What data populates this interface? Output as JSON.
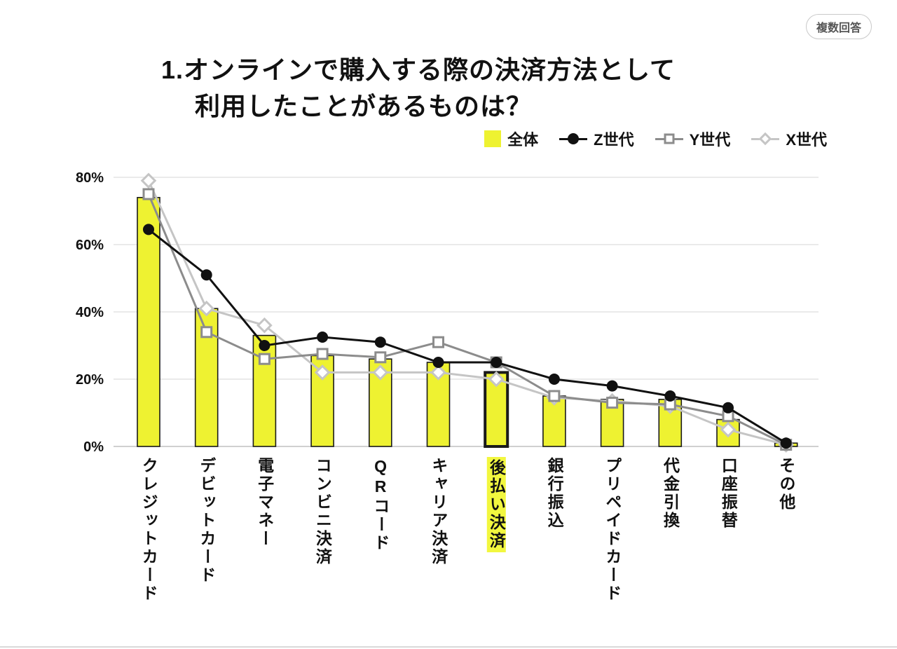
{
  "badge": "複数回答",
  "title": {
    "line1": "1.オンラインで購入する際の決済方法として",
    "line2": "利用したことがあるものは？"
  },
  "colors": {
    "bar": "#eef231",
    "bar_outline": "#1a1a1a",
    "gen_z": "#111111",
    "gen_y": "#8c8c8c",
    "gen_x": "#c5c5c5",
    "grid": "#e3e3e3",
    "baseline": "#c0c0c0",
    "highlight_bg": "#f2f73f"
  },
  "chart_data": {
    "type": "bar",
    "title": "1.オンラインで購入する際の決済方法として利用したことがあるものは？",
    "note": "複数回答",
    "legend_position": "top-right",
    "grid": true,
    "categories": [
      "クレジットカード",
      "デビットカード",
      "電子マネー",
      "コンビニ決済",
      "QRコード",
      "キャリア決済",
      "後払い決済",
      "銀行振込",
      "プリペイドカード",
      "代金引換",
      "口座振替",
      "その他"
    ],
    "highlight_category": "後払い決済",
    "ylim": [
      0,
      80
    ],
    "y_ticks": [
      "0%",
      "20%",
      "40%",
      "60%",
      "80%"
    ],
    "series": [
      {
        "name": "全体",
        "type": "bar",
        "marker": "filled-square",
        "values": [
          74,
          41,
          33,
          27,
          26,
          25,
          22,
          15,
          14,
          14,
          8,
          1
        ]
      },
      {
        "name": "Z世代",
        "type": "line",
        "marker": "filled-circle",
        "values": [
          64.5,
          51,
          30,
          32.5,
          31,
          25,
          25,
          20,
          18,
          15,
          11.5,
          1
        ]
      },
      {
        "name": "Y世代",
        "type": "line",
        "marker": "open-square",
        "values": [
          75,
          34,
          26,
          27.5,
          26.5,
          31,
          25,
          15,
          13,
          12.5,
          9,
          0.5
        ]
      },
      {
        "name": "X世代",
        "type": "line",
        "marker": "open-diamond",
        "values": [
          79,
          41,
          36,
          22,
          22,
          22,
          20,
          14.5,
          13.5,
          12,
          5,
          0.5
        ]
      }
    ]
  }
}
